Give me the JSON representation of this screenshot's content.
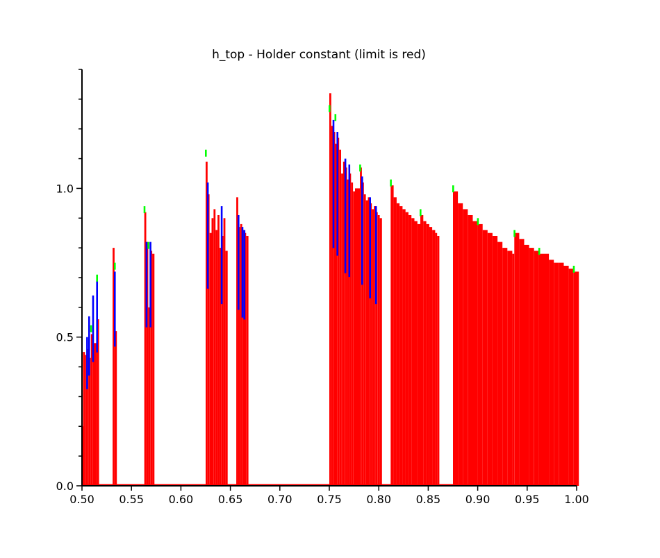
{
  "chart_data": {
    "type": "bar",
    "title": "h_top - Holder constant (limit is red)",
    "xlabel": "",
    "ylabel": "",
    "xlim": [
      0.5,
      1.0
    ],
    "ylim": [
      0.0,
      1.4
    ],
    "x_ticks": [
      "0.50",
      "0.55",
      "0.60",
      "0.65",
      "0.70",
      "0.75",
      "0.80",
      "0.85",
      "0.90",
      "0.95",
      "1.00"
    ],
    "y_ticks": [
      "0.0",
      "0.5",
      "1.0"
    ],
    "grid": false,
    "legend": "none",
    "colors": {
      "limit": "#ff0000",
      "series_blue": "#0000ff",
      "series_green": "#00ff00",
      "axis": "#000000",
      "background": "#ffffff"
    },
    "series": [
      {
        "name": "limit",
        "color": "#ff0000",
        "points": [
          [
            0.5,
            0.2
          ],
          [
            0.501,
            0.45
          ],
          [
            0.503,
            0.44
          ],
          [
            0.505,
            0.46
          ],
          [
            0.507,
            0.43
          ],
          [
            0.509,
            0.51
          ],
          [
            0.511,
            0.48
          ],
          [
            0.515,
            0.56
          ],
          [
            0.531,
            0.8
          ],
          [
            0.533,
            0.52
          ],
          [
            0.563,
            0.92
          ],
          [
            0.565,
            0.82
          ],
          [
            0.567,
            0.6
          ],
          [
            0.569,
            0.79
          ],
          [
            0.571,
            0.78
          ],
          [
            0.625,
            1.09
          ],
          [
            0.627,
            0.98
          ],
          [
            0.629,
            0.85
          ],
          [
            0.631,
            0.9
          ],
          [
            0.633,
            0.93
          ],
          [
            0.635,
            0.86
          ],
          [
            0.637,
            0.91
          ],
          [
            0.639,
            0.8
          ],
          [
            0.641,
            0.84
          ],
          [
            0.643,
            0.9
          ],
          [
            0.645,
            0.79
          ],
          [
            0.656,
            0.97
          ],
          [
            0.658,
            0.87
          ],
          [
            0.66,
            0.88
          ],
          [
            0.662,
            0.86
          ],
          [
            0.664,
            0.85
          ],
          [
            0.666,
            0.84
          ],
          [
            0.75,
            1.32
          ],
          [
            0.752,
            1.21
          ],
          [
            0.754,
            1.19
          ],
          [
            0.756,
            1.15
          ],
          [
            0.758,
            1.17
          ],
          [
            0.76,
            1.13
          ],
          [
            0.762,
            1.05
          ],
          [
            0.764,
            1.09
          ],
          [
            0.766,
            1.07
          ],
          [
            0.768,
            1.03
          ],
          [
            0.77,
            1.05
          ],
          [
            0.772,
            1.02
          ],
          [
            0.774,
            0.99
          ],
          [
            0.776,
            1.0
          ],
          [
            0.781,
            1.07
          ],
          [
            0.783,
            1.02
          ],
          [
            0.785,
            0.98
          ],
          [
            0.787,
            0.96
          ],
          [
            0.789,
            0.97
          ],
          [
            0.791,
            0.95
          ],
          [
            0.793,
            0.93
          ],
          [
            0.795,
            0.94
          ],
          [
            0.797,
            0.92
          ],
          [
            0.799,
            0.91
          ],
          [
            0.801,
            0.9
          ],
          [
            0.812,
            1.01
          ],
          [
            0.815,
            0.97
          ],
          [
            0.818,
            0.95
          ],
          [
            0.821,
            0.94
          ],
          [
            0.824,
            0.93
          ],
          [
            0.827,
            0.92
          ],
          [
            0.83,
            0.91
          ],
          [
            0.833,
            0.9
          ],
          [
            0.836,
            0.89
          ],
          [
            0.839,
            0.88
          ],
          [
            0.842,
            0.91
          ],
          [
            0.845,
            0.89
          ],
          [
            0.848,
            0.88
          ],
          [
            0.851,
            0.87
          ],
          [
            0.854,
            0.86
          ],
          [
            0.857,
            0.85
          ],
          [
            0.859,
            0.84
          ],
          [
            0.875,
            0.99
          ],
          [
            0.88,
            0.95
          ],
          [
            0.885,
            0.93
          ],
          [
            0.89,
            0.91
          ],
          [
            0.895,
            0.89
          ],
          [
            0.9,
            0.88
          ],
          [
            0.905,
            0.86
          ],
          [
            0.91,
            0.85
          ],
          [
            0.915,
            0.84
          ],
          [
            0.92,
            0.82
          ],
          [
            0.925,
            0.8
          ],
          [
            0.93,
            0.79
          ],
          [
            0.935,
            0.78
          ],
          [
            0.937,
            0.85
          ],
          [
            0.942,
            0.83
          ],
          [
            0.947,
            0.81
          ],
          [
            0.952,
            0.8
          ],
          [
            0.957,
            0.79
          ],
          [
            0.962,
            0.78
          ],
          [
            0.967,
            0.78
          ],
          [
            0.972,
            0.76
          ],
          [
            0.977,
            0.75
          ],
          [
            0.982,
            0.75
          ],
          [
            0.987,
            0.74
          ],
          [
            0.992,
            0.73
          ],
          [
            0.997,
            0.72
          ],
          [
            1.0,
            0.72
          ]
        ]
      },
      {
        "name": "blue",
        "color": "#0000ff",
        "points": [
          [
            0.505,
            0.5
          ],
          [
            0.507,
            0.57
          ],
          [
            0.511,
            0.64
          ],
          [
            0.515,
            0.69
          ],
          [
            0.533,
            0.72
          ],
          [
            0.565,
            0.82
          ],
          [
            0.569,
            0.82
          ],
          [
            0.627,
            1.02
          ],
          [
            0.641,
            0.94
          ],
          [
            0.658,
            0.91
          ],
          [
            0.662,
            0.87
          ],
          [
            0.664,
            0.86
          ],
          [
            0.754,
            1.23
          ],
          [
            0.758,
            1.19
          ],
          [
            0.766,
            1.1
          ],
          [
            0.77,
            1.08
          ],
          [
            0.783,
            1.04
          ],
          [
            0.791,
            0.97
          ],
          [
            0.797,
            0.94
          ]
        ]
      },
      {
        "name": "green",
        "color": "#00ff00",
        "points": [
          [
            0.509,
            0.54
          ],
          [
            0.515,
            0.71
          ],
          [
            0.533,
            0.75
          ],
          [
            0.563,
            0.94
          ],
          [
            0.567,
            0.82
          ],
          [
            0.625,
            1.13
          ],
          [
            0.75,
            1.28
          ],
          [
            0.756,
            1.25
          ],
          [
            0.781,
            1.08
          ],
          [
            0.812,
            1.03
          ],
          [
            0.842,
            0.93
          ],
          [
            0.875,
            1.01
          ],
          [
            0.9,
            0.9
          ],
          [
            0.937,
            0.86
          ],
          [
            0.962,
            0.8
          ],
          [
            0.997,
            0.74
          ]
        ]
      }
    ]
  }
}
